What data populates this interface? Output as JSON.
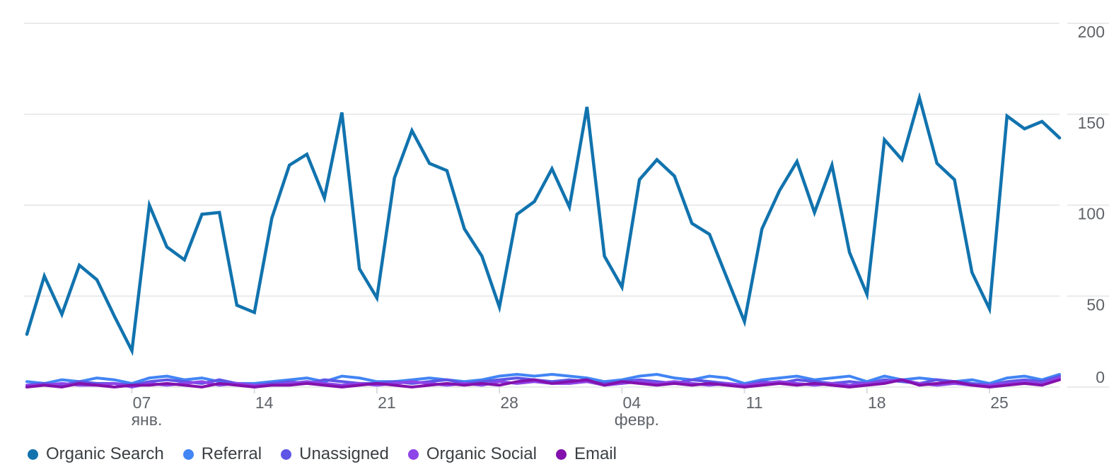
{
  "chart_data": {
    "type": "line",
    "title": "",
    "grid": true,
    "legend_position": "bottom",
    "x_axis": {
      "unit": "day",
      "points": 60,
      "tick_indices": [
        6,
        13,
        20,
        27,
        34,
        41,
        48,
        55
      ],
      "tick_labels": [
        "07",
        "14",
        "21",
        "28",
        "04",
        "11",
        "18",
        "25"
      ],
      "month_labels": [
        {
          "index": 6,
          "label": "янв."
        },
        {
          "index": 34,
          "label": "февр."
        }
      ]
    },
    "y_axis": {
      "position": "right",
      "min": 0,
      "max": 200,
      "ticks": [
        200,
        150,
        100,
        50,
        0
      ],
      "tick_labels": [
        "200",
        "150",
        "100",
        "50",
        "0"
      ]
    },
    "series": [
      {
        "name": "Organic Search",
        "color": "#1173AE",
        "values": [
          29,
          61,
          40,
          67,
          59,
          39,
          20,
          100,
          77,
          70,
          95,
          96,
          45,
          41,
          93,
          122,
          128,
          104,
          151,
          65,
          49,
          115,
          141,
          123,
          119,
          87,
          72,
          44,
          95,
          102,
          120,
          99,
          154,
          72,
          55,
          114,
          125,
          116,
          90,
          84,
          60,
          36,
          87,
          108,
          124,
          96,
          122,
          74,
          51,
          136,
          125,
          159,
          123,
          114,
          63,
          43,
          149,
          142,
          146,
          137
        ]
      },
      {
        "name": "Referral",
        "color": "#4285F4",
        "values": [
          3,
          2,
          4,
          3,
          5,
          4,
          2,
          5,
          6,
          4,
          5,
          3,
          2,
          2,
          3,
          4,
          5,
          3,
          6,
          5,
          3,
          3,
          4,
          5,
          4,
          3,
          4,
          6,
          7,
          6,
          7,
          6,
          5,
          3,
          4,
          6,
          7,
          5,
          4,
          6,
          5,
          2,
          4,
          5,
          6,
          4,
          5,
          6,
          3,
          6,
          4,
          5,
          4,
          3,
          4,
          2,
          5,
          6,
          4,
          7
        ]
      },
      {
        "name": "Unassigned",
        "color": "#5E55E6",
        "values": [
          1,
          2,
          1,
          3,
          2,
          2,
          1,
          3,
          4,
          3,
          2,
          4,
          2,
          1,
          2,
          3,
          2,
          4,
          3,
          2,
          2,
          3,
          2,
          3,
          4,
          2,
          3,
          4,
          5,
          4,
          3,
          4,
          3,
          2,
          3,
          4,
          3,
          2,
          4,
          3,
          2,
          1,
          3,
          2,
          4,
          3,
          2,
          3,
          2,
          4,
          3,
          2,
          4,
          3,
          2,
          1,
          3,
          4,
          3,
          6
        ]
      },
      {
        "name": "Organic Social",
        "color": "#8E44E8",
        "values": [
          1,
          1,
          2,
          1,
          1,
          2,
          0,
          2,
          1,
          2,
          3,
          1,
          2,
          1,
          1,
          2,
          3,
          2,
          1,
          2,
          1,
          2,
          3,
          2,
          1,
          2,
          1,
          3,
          2,
          3,
          2,
          2,
          3,
          1,
          2,
          3,
          2,
          3,
          2,
          1,
          2,
          1,
          2,
          3,
          2,
          1,
          2,
          1,
          2,
          3,
          4,
          2,
          1,
          2,
          1,
          1,
          2,
          3,
          2,
          5
        ]
      },
      {
        "name": "Email",
        "color": "#8311AC",
        "values": [
          0,
          1,
          0,
          2,
          1,
          0,
          1,
          1,
          2,
          1,
          0,
          2,
          1,
          0,
          1,
          1,
          2,
          1,
          0,
          1,
          2,
          1,
          0,
          1,
          2,
          1,
          2,
          1,
          3,
          4,
          2,
          3,
          4,
          1,
          3,
          2,
          1,
          2,
          1,
          2,
          1,
          0,
          1,
          2,
          1,
          2,
          1,
          0,
          1,
          2,
          4,
          1,
          2,
          3,
          1,
          0,
          1,
          2,
          1,
          4
        ]
      }
    ],
    "colors": {
      "grid": "#E9EAEC",
      "tick": "#DADCE0",
      "axis_text": "#5F6368",
      "legend_text": "#3C4043"
    }
  },
  "legend": {
    "items": [
      {
        "label": "Organic Search"
      },
      {
        "label": "Referral"
      },
      {
        "label": "Unassigned"
      },
      {
        "label": "Organic Social"
      },
      {
        "label": "Email"
      }
    ]
  }
}
